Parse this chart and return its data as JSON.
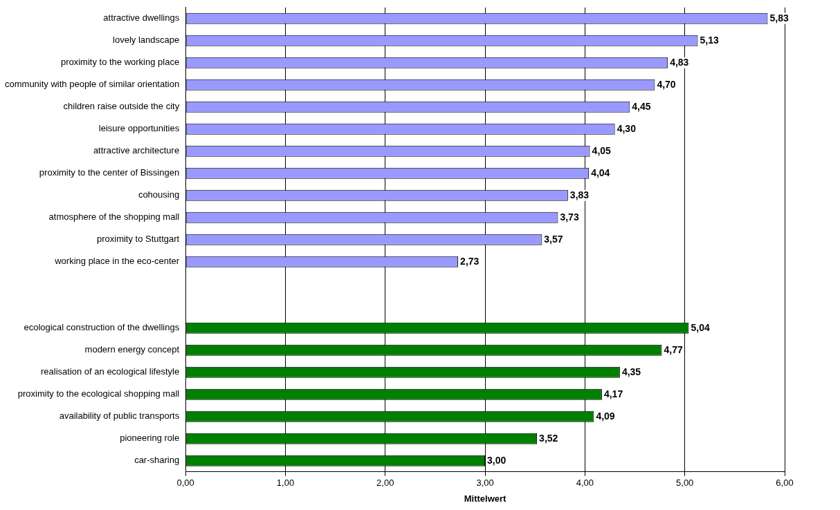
{
  "chart_data": {
    "type": "bar",
    "orientation": "horizontal",
    "xlabel": "Mittelwert",
    "categories": [
      "attractive dwellings",
      "lovely landscape",
      "proximity to the working place",
      "community with people of similar orientation",
      "children raise outside the city",
      "leisure opportunities",
      "attractive architecture",
      "proximity to the center of Bissingen",
      "cohousing",
      "atmosphere of the shopping mall",
      "proximity to Stuttgart",
      "working place in the eco-center",
      null,
      null,
      "ecological construction of the dwellings",
      "modern energy concept",
      "realisation of an ecological lifestyle",
      "proximity to the ecological shopping mall",
      "availability of public transports",
      "pioneering role",
      "car-sharing"
    ],
    "values": [
      5.83,
      5.13,
      4.83,
      4.7,
      4.45,
      4.3,
      4.05,
      4.04,
      3.83,
      3.73,
      3.57,
      2.73,
      null,
      null,
      5.04,
      4.77,
      4.35,
      4.17,
      4.09,
      3.52,
      3.0
    ],
    "value_labels": [
      "5,83",
      "5,13",
      "4,83",
      "4,70",
      "4,45",
      "4,30",
      "4,05",
      "4,04",
      "3,83",
      "3,73",
      "3,57",
      "2,73",
      null,
      null,
      "5,04",
      "4,77",
      "4,35",
      "4,17",
      "4,09",
      "3,52",
      "3,00"
    ],
    "colors": [
      "#9999ff",
      "#9999ff",
      "#9999ff",
      "#9999ff",
      "#9999ff",
      "#9999ff",
      "#9999ff",
      "#9999ff",
      "#9999ff",
      "#9999ff",
      "#9999ff",
      "#9999ff",
      null,
      null,
      "#008000",
      "#008000",
      "#008000",
      "#008000",
      "#008000",
      "#008000",
      "#008000"
    ],
    "xlim": [
      0,
      6
    ],
    "xticks": [
      {
        "value": 0,
        "label": "0,00"
      },
      {
        "value": 1,
        "label": "1,00"
      },
      {
        "value": 2,
        "label": "2,00"
      },
      {
        "value": 3,
        "label": "3,00"
      },
      {
        "value": 4,
        "label": "4,00"
      },
      {
        "value": 5,
        "label": "5,00"
      },
      {
        "value": 6,
        "label": "6,00"
      }
    ],
    "grid": "x",
    "legend": false
  }
}
